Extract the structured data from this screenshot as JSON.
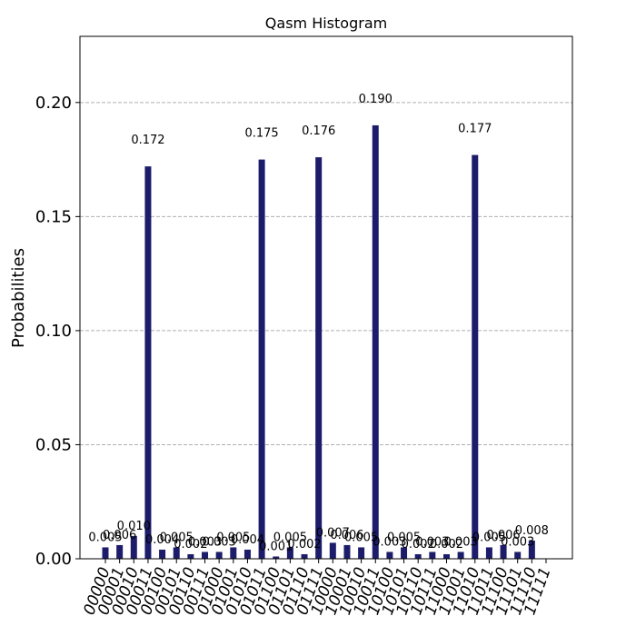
{
  "chart_data": {
    "type": "bar",
    "title": "Qasm Histogram",
    "xlabel": "",
    "ylabel": "Probabilities",
    "ylim": [
      0,
      0.229
    ],
    "yticks": [
      0.0,
      0.05,
      0.1,
      0.15,
      0.2
    ],
    "ytick_labels": [
      "0.00",
      "0.05",
      "0.10",
      "0.15",
      "0.20"
    ],
    "grid": "horizontal-dashed",
    "bar_color": "#1c1c6b",
    "categories": [
      "00000",
      "00001",
      "00010",
      "00011",
      "00100",
      "00101",
      "00110",
      "00111",
      "01000",
      "01001",
      "01010",
      "01011",
      "01100",
      "01101",
      "01110",
      "01111",
      "10000",
      "10001",
      "10010",
      "10011",
      "10100",
      "10101",
      "10110",
      "10111",
      "11000",
      "11001",
      "11010",
      "11011",
      "11100",
      "11101",
      "11110",
      "11111"
    ],
    "values": [
      0.005,
      0.006,
      0.01,
      0.172,
      0.004,
      0.005,
      0.002,
      0.003,
      0.003,
      0.005,
      0.004,
      0.175,
      0.001,
      0.005,
      0.002,
      0.176,
      0.007,
      0.006,
      0.005,
      0.19,
      0.003,
      0.005,
      0.002,
      0.003,
      0.002,
      0.003,
      0.177,
      0.005,
      0.006,
      0.003,
      0.008,
      0.0
    ],
    "value_labels": [
      "0.005",
      "0.006",
      "0.010",
      "0.172",
      "0.004",
      "0.005",
      "0.002",
      "0.003",
      "0.003",
      "0.005",
      "0.004",
      "0.175",
      "0.001",
      "0.005",
      "0.002",
      "0.176",
      "0.007",
      "0.006",
      "0.005",
      "0.190",
      "0.003",
      "0.005",
      "0.002",
      "0.003",
      "0.002",
      "0.003",
      "0.177",
      "0.005",
      "0.006",
      "0.003",
      "0.008",
      ""
    ]
  }
}
